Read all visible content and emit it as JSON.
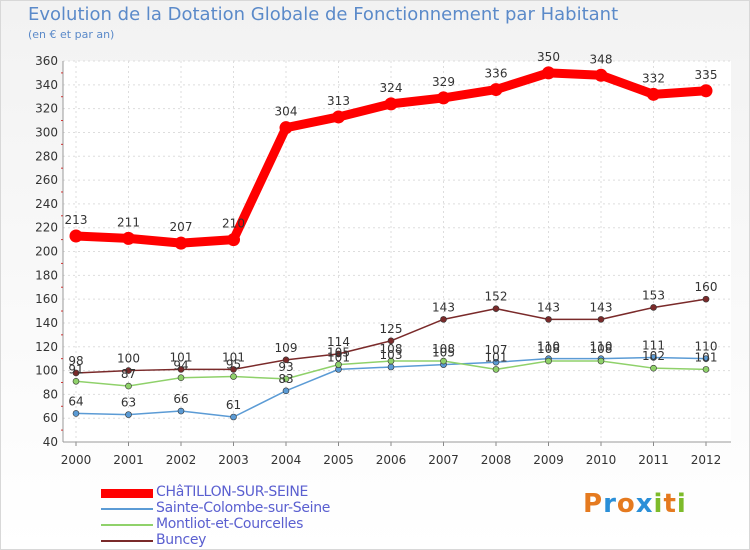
{
  "header": {
    "title": "Evolution de la Dotation Globale de Fonctionnement par Habitant",
    "subtitle": "(en € et par an)"
  },
  "logo": {
    "letters": [
      "P",
      "r",
      "o",
      "x",
      "i",
      "t",
      "i"
    ],
    "colors": [
      "#e57a1f",
      "#2a8fd8",
      "#e57a1f",
      "#2a8fd8",
      "#7dbb2a",
      "#e57a1f",
      "#7dbb2a"
    ]
  },
  "chart_data": {
    "type": "line",
    "title": "Evolution de la Dotation Globale de Fonctionnement par Habitant",
    "ylabel": "(en € et par an)",
    "xlabel": "",
    "ylim": [
      40,
      360
    ],
    "yticks": [
      40,
      60,
      80,
      100,
      120,
      140,
      160,
      180,
      200,
      220,
      240,
      260,
      280,
      300,
      320,
      340,
      360
    ],
    "grid": true,
    "legend_position": "bottom-left",
    "categories": [
      "2000",
      "2001",
      "2002",
      "2003",
      "2004",
      "2005",
      "2006",
      "2007",
      "2008",
      "2009",
      "2010",
      "2011",
      "2012"
    ],
    "series": [
      {
        "name": "CHâTILLON-SUR-SEINE",
        "color": "#ff0000",
        "values": [
          213,
          211,
          207,
          210,
          304,
          313,
          324,
          329,
          336,
          350,
          348,
          332,
          335
        ],
        "labels": [
          "213",
          "211",
          "207",
          "210",
          "304",
          "313",
          "324",
          "329",
          "336",
          "350",
          "348",
          "332",
          "335"
        ]
      },
      {
        "name": "Sainte-Colombe-sur-Seine",
        "color": "#5b9bd5",
        "values": [
          64,
          63,
          66,
          61,
          83,
          101,
          103,
          105,
          107,
          110,
          110,
          111,
          110
        ],
        "labels": [
          "64",
          "63",
          "66",
          "61",
          "83",
          "101",
          "103",
          "105",
          "107",
          "110",
          "110",
          "111",
          "110"
        ]
      },
      {
        "name": "Montliot-et-Courcelles",
        "color": "#8fd16a",
        "values": [
          91,
          87,
          94,
          95,
          93,
          105,
          108,
          108,
          101,
          108,
          108,
          102,
          101
        ],
        "labels": [
          "91",
          "87",
          "94",
          "95",
          "93",
          "105",
          "108",
          "108",
          "101",
          "108",
          "108",
          "102",
          "101"
        ]
      },
      {
        "name": "Buncey",
        "color": "#7a2a2a",
        "values": [
          98,
          100,
          101,
          101,
          109,
          114,
          125,
          143,
          152,
          143,
          143,
          153,
          160
        ],
        "labels": [
          "98",
          "100",
          "101",
          "101",
          "109",
          "114",
          "125",
          "143",
          "152",
          "143",
          "143",
          "153",
          "160"
        ]
      }
    ]
  }
}
